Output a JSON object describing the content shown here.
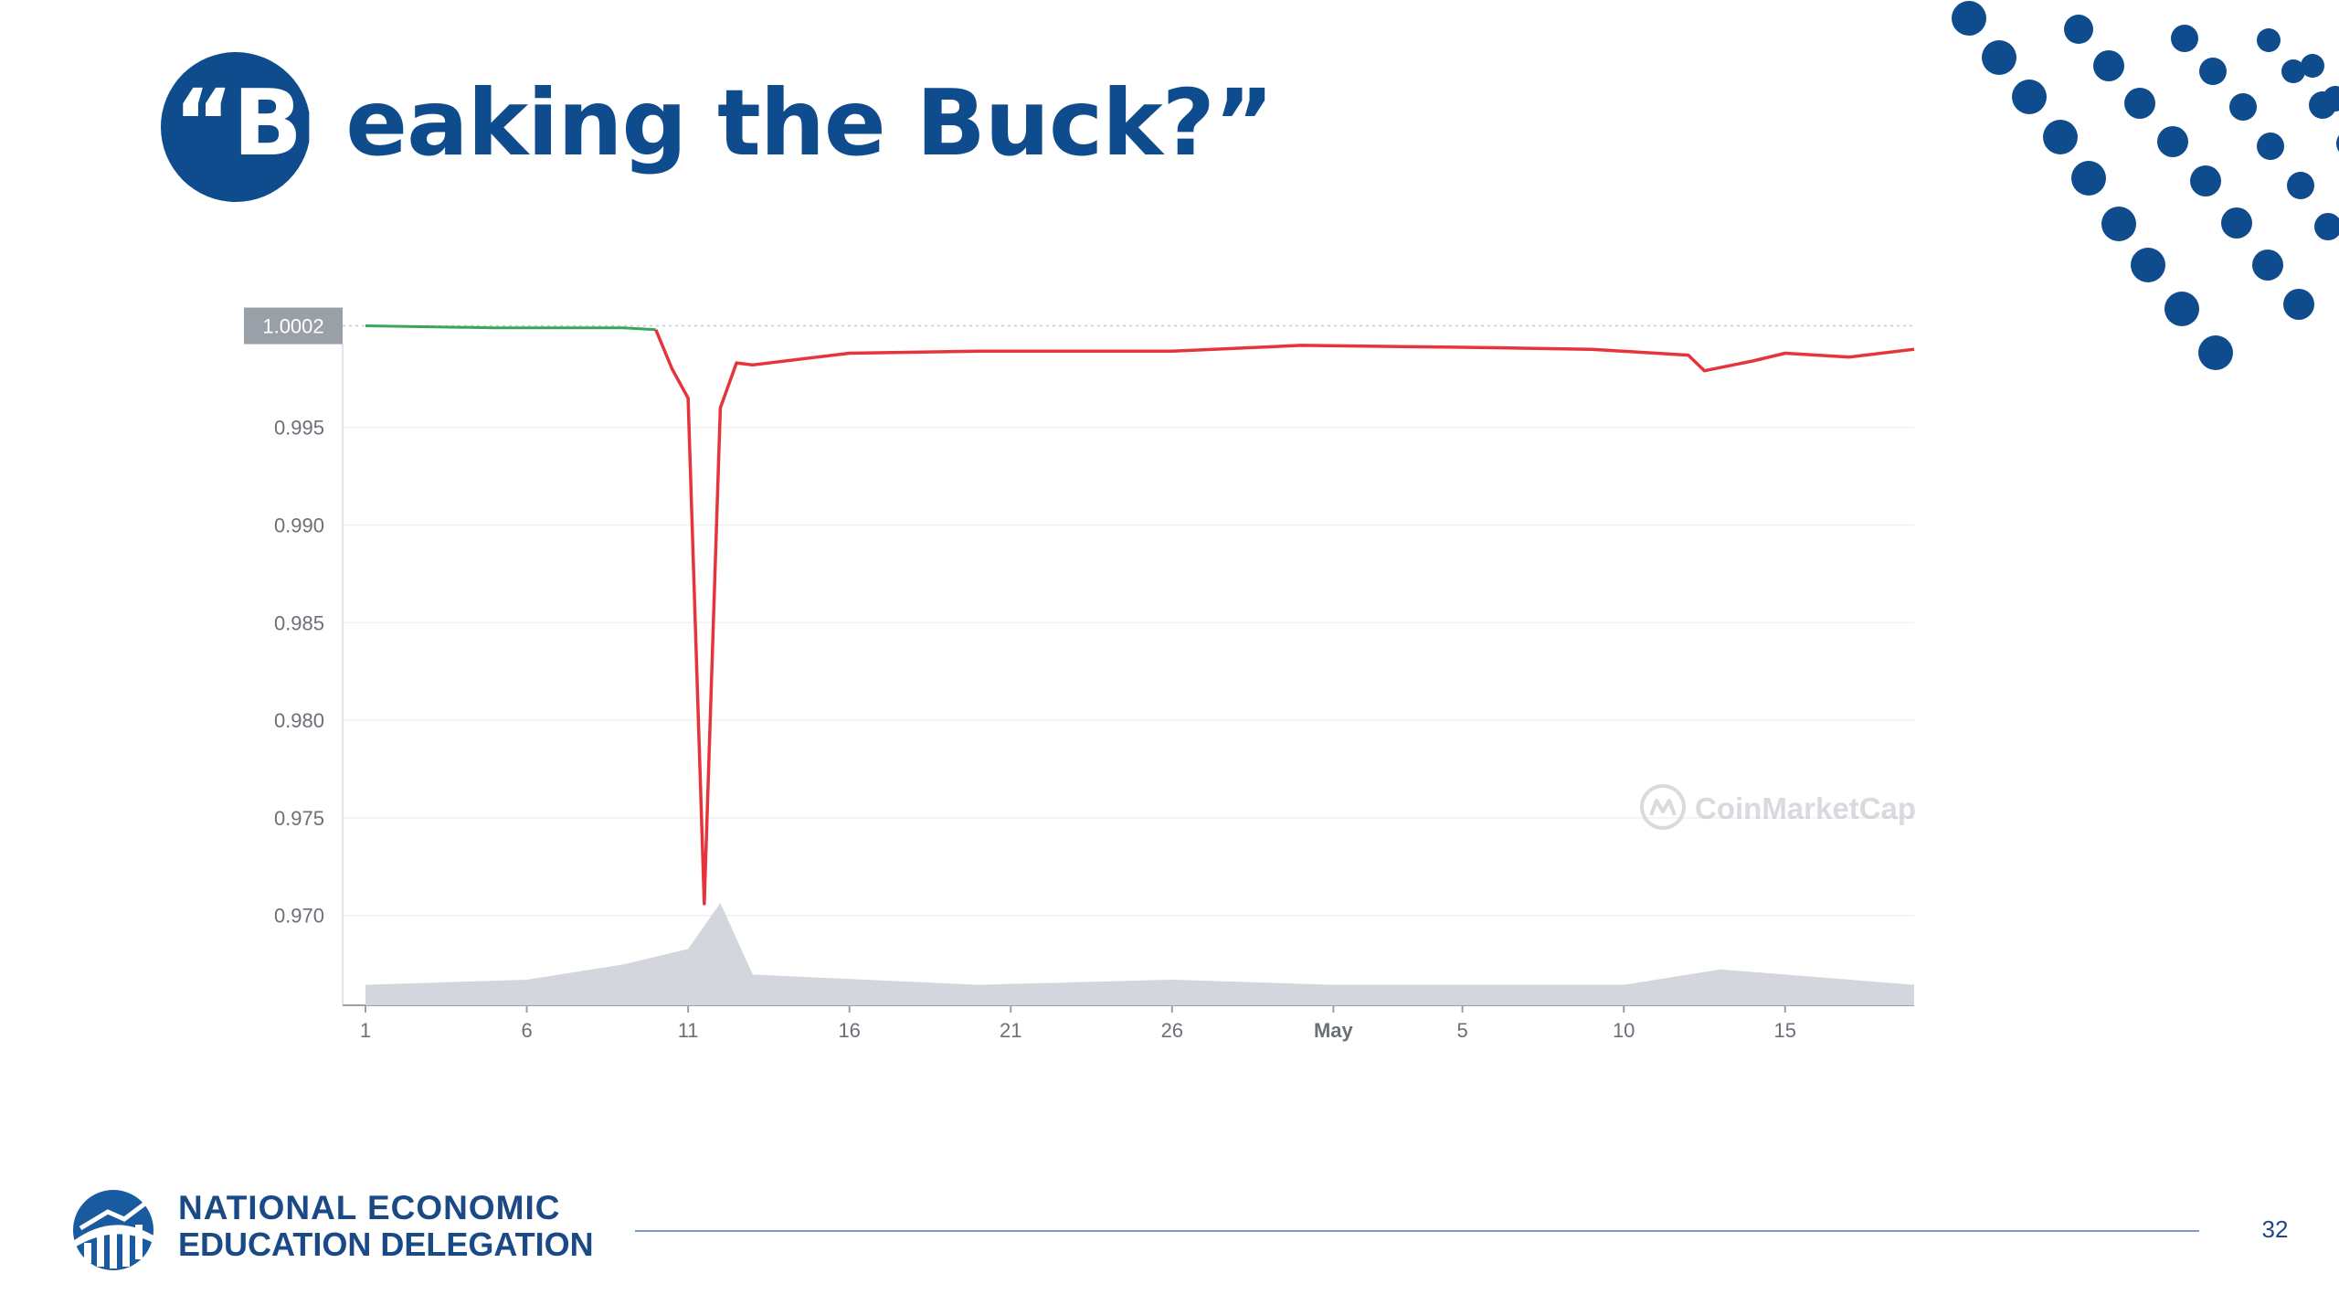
{
  "slide": {
    "title_prefix": "“Br",
    "title_rest": "eaking the Buck?”",
    "page_number": "32"
  },
  "branding": {
    "org_line1": "NATIONAL ECONOMIC",
    "org_line2": "EDUCATION DELEGATION",
    "logo_icon": "need-logo-icon",
    "watermark": "CoinMarketCap",
    "watermark_icon": "coinmarketcap-icon"
  },
  "colors": {
    "brand_navy": "#0e4c8e",
    "price_down": "#e5343c",
    "price_up": "#3aa55c",
    "volume": "#d3d6dd",
    "current_price_tag": "#9aa0a8"
  },
  "chart_data": {
    "type": "line",
    "title": "",
    "xlabel": "",
    "ylabel": "",
    "ylim": [
      0.9654,
      1.0006
    ],
    "yticks": [
      0.97,
      0.975,
      0.98,
      0.985,
      0.99,
      0.995
    ],
    "ytick_labels": [
      "0.970",
      "0.975",
      "0.980",
      "0.985",
      "0.990",
      "0.995"
    ],
    "current_price_label": "1.0002",
    "current_price": 1.0002,
    "xlim": [
      "2022-04-01",
      "2022-05-19"
    ],
    "xticks": [
      "2022-04-01",
      "2022-04-06",
      "2022-04-11",
      "2022-04-16",
      "2022-04-21",
      "2022-04-26",
      "2022-05-01",
      "2022-05-05",
      "2022-05-10",
      "2022-05-15"
    ],
    "xtick_labels": [
      "1",
      "6",
      "11",
      "16",
      "21",
      "26",
      "May",
      "5",
      "10",
      "15"
    ],
    "grid": true,
    "series": [
      {
        "role": "price",
        "x": [
          "2022-04-01",
          "2022-04-05",
          "2022-04-09",
          "2022-04-10",
          "2022-04-10T12:00",
          "2022-04-11",
          "2022-04-11T12:00",
          "2022-04-12",
          "2022-04-12T12:00",
          "2022-04-13",
          "2022-04-16",
          "2022-04-20",
          "2022-04-26",
          "2022-04-30",
          "2022-05-05",
          "2022-05-09",
          "2022-05-12",
          "2022-05-12T12:00",
          "2022-05-14",
          "2022-05-15",
          "2022-05-17",
          "2022-05-19"
        ],
        "y": [
          1.0002,
          1.0001,
          1.0001,
          1.0,
          0.998,
          0.9965,
          0.9706,
          0.996,
          0.9983,
          0.9982,
          0.9988,
          0.9989,
          0.9989,
          0.9992,
          0.9991,
          0.999,
          0.9987,
          0.9979,
          0.9984,
          0.9988,
          0.9986,
          0.999
        ]
      },
      {
        "role": "volume",
        "x": [
          "2022-04-01",
          "2022-04-06",
          "2022-04-09",
          "2022-04-11",
          "2022-04-12",
          "2022-04-13",
          "2022-04-20",
          "2022-04-26",
          "2022-05-01",
          "2022-05-10",
          "2022-05-13",
          "2022-05-19"
        ],
        "y": [
          0.2,
          0.25,
          0.4,
          0.55,
          1.0,
          0.3,
          0.2,
          0.25,
          0.2,
          0.2,
          0.35,
          0.2
        ]
      }
    ]
  }
}
